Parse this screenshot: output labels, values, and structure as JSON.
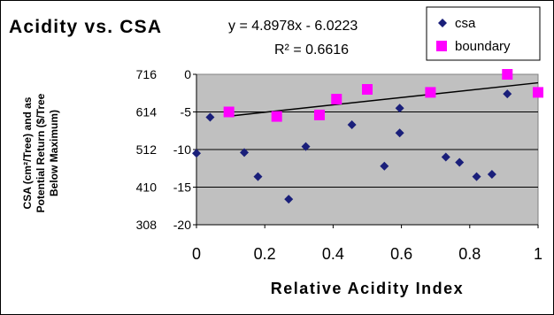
{
  "chart_data": {
    "type": "scatter",
    "title": "Acidity vs. CSA",
    "xlabel": "Relative Acidity Index",
    "ylabel_lines": [
      "CSA (cm²/Tree) and as",
      "Potential Return ($/Tree",
      "Below Maximum)"
    ],
    "xlim": [
      0,
      1
    ],
    "x_ticks": [
      "0",
      "0.2",
      "0.4",
      "0.6",
      "0.8",
      "1"
    ],
    "left_axis_ticks": [
      "716",
      "614",
      "512",
      "410",
      "308"
    ],
    "inner_axis_ticks": [
      "0",
      "-5",
      "-10",
      "-15",
      "-20"
    ],
    "ylim_secondary": [
      -20,
      0
    ],
    "grid": true,
    "legend_position": "top-right",
    "trendline": {
      "equation": "y = 4.8978x - 6.0223",
      "r_squared": "R² = 0.6616",
      "slope": 4.8978,
      "intercept": -6.0223
    },
    "series": [
      {
        "name": "csa",
        "marker": "diamond",
        "color": "#1a1f7a",
        "points": [
          [
            0.0,
            -10.5
          ],
          [
            0.04,
            -5.7
          ],
          [
            0.14,
            -10.4
          ],
          [
            0.18,
            -13.6
          ],
          [
            0.27,
            -16.6
          ],
          [
            0.32,
            -9.6
          ],
          [
            0.455,
            -6.7
          ],
          [
            0.55,
            -12.2
          ],
          [
            0.595,
            -4.5
          ],
          [
            0.595,
            -7.8
          ],
          [
            0.73,
            -11.0
          ],
          [
            0.77,
            -11.7
          ],
          [
            0.82,
            -13.6
          ],
          [
            0.865,
            -13.3
          ],
          [
            0.91,
            -2.6
          ]
        ]
      },
      {
        "name": "boundary",
        "marker": "square",
        "color": "#ff00ff",
        "points": [
          [
            0.095,
            -5.0
          ],
          [
            0.235,
            -5.6
          ],
          [
            0.36,
            -5.4
          ],
          [
            0.41,
            -3.3
          ],
          [
            0.5,
            -2.0
          ],
          [
            0.685,
            -2.4
          ],
          [
            0.91,
            0.0
          ],
          [
            1.0,
            -2.4
          ]
        ]
      }
    ]
  }
}
